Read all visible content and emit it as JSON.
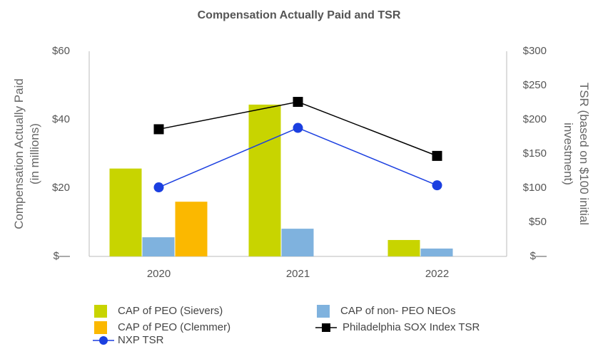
{
  "chart_data": {
    "type": "bar",
    "title": "Compensation Actually Paid and TSR",
    "y_label": [
      "Compensation Actually Paid",
      "(in millions)"
    ],
    "y2_label": [
      "TSR (based on $100 initial",
      "investment)"
    ],
    "categories": [
      "2020",
      "2021",
      "2022"
    ],
    "series": [
      {
        "name": "CAP of PEO (Sievers)",
        "type": "bar",
        "color": "#c8d400",
        "values": [
          25.7,
          44.4,
          4.8
        ]
      },
      {
        "name": "CAP of non- PEO NEOs",
        "type": "bar",
        "color": "#7fb2de",
        "values": [
          5.6,
          8.1,
          2.3
        ]
      },
      {
        "name": "CAP of PEO (Clemmer)",
        "type": "bar",
        "color": "#fbb800",
        "values": [
          16,
          null,
          null
        ]
      },
      {
        "name": "Philadelphia SOX Index TSR",
        "type": "line",
        "marker": "square",
        "axis": "y2",
        "color": "#000000",
        "values": [
          186,
          226,
          147
        ]
      },
      {
        "name": "NXP TSR",
        "type": "line",
        "marker": "circle",
        "axis": "y2",
        "color": "#1b3fe0",
        "values": [
          101,
          188,
          104
        ]
      }
    ],
    "ylim": [
      0,
      60
    ],
    "yticks": [
      {
        "value": 0,
        "label": "$—"
      },
      {
        "value": 20,
        "label": "$20"
      },
      {
        "value": 40,
        "label": "$40"
      },
      {
        "value": 60,
        "label": "$60"
      }
    ],
    "y2lim": [
      0,
      300
    ],
    "y2ticks": [
      {
        "value": 0,
        "label": "$—"
      },
      {
        "value": 50,
        "label": "$50"
      },
      {
        "value": 100,
        "label": "$100"
      },
      {
        "value": 150,
        "label": "$150"
      },
      {
        "value": 200,
        "label": "$200"
      },
      {
        "value": 250,
        "label": "$250"
      },
      {
        "value": 300,
        "label": "$300"
      }
    ],
    "grid": false
  }
}
